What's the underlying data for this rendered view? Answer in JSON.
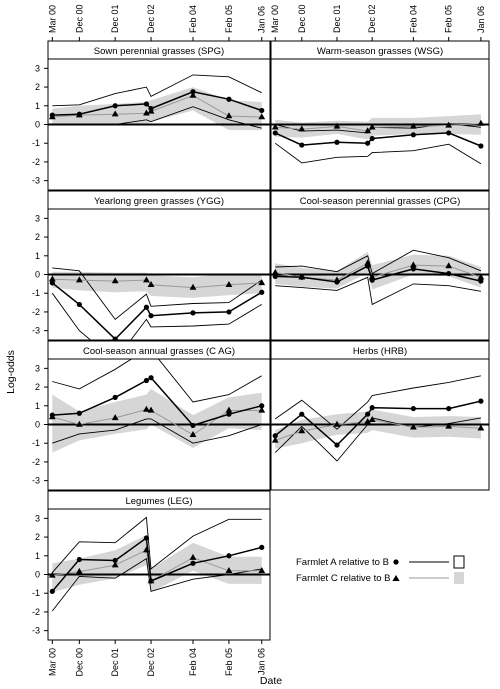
{
  "figure": {
    "ylabel": "Log-odds",
    "xlabel": "Date",
    "x_tick_labels": [
      "Mar 00",
      "Dec 00",
      "Dec 01",
      "Dec 02",
      "Feb 04",
      "Feb 05",
      "Jan 06"
    ],
    "y_tick_labels": [
      "-3",
      "-2",
      "-1",
      "0",
      "1",
      "2",
      "3"
    ]
  },
  "legend": {
    "farmlet_a": "Farmlet A relative to B",
    "farmlet_c": "Farmlet C relative to B"
  },
  "colors": {
    "series_a": "#000000",
    "series_c": "#9a9a9a",
    "band_c": "#d6d6d6"
  },
  "chart_data": {
    "type": "line",
    "ylim": [
      -3.5,
      3.5
    ],
    "xlim": [
      "2000-01-17",
      "2006-03-26"
    ],
    "grid": false,
    "reference_line": 0,
    "legend_position": "bottom-right",
    "series_names": [
      "Farmlet A relative to B",
      "Farmlet C relative to B"
    ],
    "x": [
      "2000-03-01",
      "2000-12-01",
      "2001-12-01",
      "2002-10-15",
      "2002-12-01",
      "2004-02-01",
      "2005-02-01",
      "2006-01-01"
    ],
    "panels": [
      {
        "title": "Sown perennial grasses (SPG)",
        "a": [
          0.5,
          0.55,
          1.0,
          1.1,
          0.85,
          1.75,
          1.35,
          0.75
        ],
        "a_lo": [
          0.0,
          0.0,
          0.0,
          0.25,
          0.15,
          0.95,
          0.25,
          -0.2
        ],
        "a_hi": [
          1.0,
          1.05,
          1.65,
          2.0,
          1.5,
          2.65,
          2.55,
          1.7
        ],
        "c": [
          0.4,
          0.5,
          0.55,
          0.6,
          0.7,
          1.55,
          0.45,
          0.4
        ],
        "c_lo": [
          0.0,
          0.0,
          0.05,
          0.0,
          0.15,
          0.75,
          -0.3,
          -0.3
        ],
        "c_hi": [
          0.85,
          1.0,
          1.1,
          1.2,
          1.3,
          2.0,
          1.3,
          1.2
        ]
      },
      {
        "title": "Warm-season grasses (WSG)",
        "a": [
          -0.45,
          -1.1,
          -0.95,
          -1.0,
          -0.75,
          -0.55,
          -0.45,
          -1.15
        ],
        "a_lo": [
          -1.0,
          -2.05,
          -1.75,
          -1.7,
          -1.5,
          -1.4,
          -1.05,
          -2.1
        ],
        "a_hi": [
          0.0,
          -0.35,
          -0.3,
          -0.45,
          -0.15,
          -0.2,
          0.05,
          -0.15
        ],
        "c": [
          -0.15,
          -0.25,
          -0.1,
          -0.35,
          -0.15,
          -0.1,
          -0.05,
          0.05
        ],
        "c_lo": [
          -0.65,
          -0.7,
          -0.5,
          -0.8,
          -0.6,
          -0.5,
          -0.5,
          -0.55
        ],
        "c_hi": [
          0.25,
          0.1,
          0.2,
          0.15,
          0.35,
          0.35,
          0.45,
          0.55
        ]
      },
      {
        "title": "Yearlong green grasses (YGG)",
        "a": [
          -0.45,
          -1.6,
          -3.45,
          -1.75,
          -2.2,
          -2.05,
          -2.0,
          -0.95
        ],
        "a_lo": [
          -1.0,
          -3.0,
          -4.6,
          -2.4,
          -2.8,
          -2.75,
          -2.65,
          -1.6
        ],
        "a_hi": [
          0.35,
          0.2,
          -2.4,
          -1.05,
          -1.7,
          -1.55,
          -1.5,
          -0.3
        ],
        "c": [
          -0.25,
          -0.3,
          -0.35,
          -0.3,
          -0.55,
          -0.7,
          -0.55,
          -0.45
        ],
        "c_lo": [
          -0.7,
          -0.85,
          -0.95,
          -0.9,
          -1.15,
          -1.25,
          -1.1,
          -1.0
        ],
        "c_hi": [
          0.15,
          0.15,
          0.1,
          0.1,
          -0.05,
          -0.15,
          0.05,
          0.05
        ]
      },
      {
        "title": "Cool-season perennial grasses (CPG)",
        "a": [
          -0.1,
          -0.15,
          -0.4,
          0.45,
          -0.3,
          0.3,
          0.05,
          -0.35
        ],
        "a_lo": [
          -0.6,
          -0.7,
          -0.85,
          -0.15,
          -1.6,
          -0.5,
          -0.6,
          -0.9
        ],
        "a_hi": [
          0.4,
          0.45,
          0.15,
          1.0,
          0.05,
          1.3,
          0.9,
          0.2
        ],
        "c": [
          0.1,
          -0.15,
          -0.3,
          0.6,
          -0.15,
          0.5,
          0.45,
          -0.15
        ],
        "c_lo": [
          -0.5,
          -0.65,
          -0.75,
          0.1,
          -0.8,
          0.0,
          -0.1,
          -0.7
        ],
        "c_hi": [
          0.6,
          0.35,
          0.2,
          1.2,
          0.5,
          1.05,
          1.0,
          0.4
        ]
      },
      {
        "title": "Cool-season annual grasses (C AG)",
        "a": [
          0.5,
          0.6,
          1.45,
          2.35,
          2.5,
          -0.05,
          0.55,
          1.0
        ],
        "a_lo": [
          -1.0,
          -0.5,
          -0.3,
          0.3,
          0.3,
          -1.0,
          -0.6,
          0.0
        ],
        "a_hi": [
          2.3,
          1.9,
          2.95,
          4.0,
          4.0,
          1.2,
          1.6,
          2.6
        ],
        "c": [
          0.4,
          0.0,
          0.35,
          0.8,
          0.75,
          -0.55,
          0.75,
          0.75
        ],
        "c_lo": [
          -1.5,
          -0.85,
          -0.5,
          -0.25,
          0.0,
          -1.25,
          -0.2,
          -0.3
        ],
        "c_hi": [
          1.6,
          0.7,
          1.2,
          1.6,
          1.9,
          0.5,
          1.45,
          1.7
        ]
      },
      {
        "title": "Herbs (HRB)",
        "a": [
          -0.6,
          0.55,
          -1.1,
          0.55,
          0.9,
          0.85,
          0.85,
          1.25
        ],
        "a_lo": [
          -1.5,
          -0.1,
          -1.95,
          0.0,
          0.35,
          -0.15,
          0.05,
          0.35
        ],
        "a_hi": [
          0.3,
          1.3,
          -0.25,
          1.2,
          1.55,
          1.95,
          2.25,
          2.6
        ],
        "c": [
          -0.85,
          -0.35,
          0.0,
          0.15,
          0.25,
          -0.15,
          -0.1,
          -0.2
        ],
        "c_lo": [
          -1.3,
          -1.0,
          -0.55,
          -0.45,
          -0.3,
          -0.7,
          -0.65,
          -0.75
        ],
        "c_hi": [
          -0.3,
          0.25,
          0.55,
          0.7,
          0.8,
          0.4,
          0.45,
          0.4
        ]
      },
      {
        "title": "Legumes (LEG)",
        "a": [
          -0.9,
          0.8,
          0.75,
          1.95,
          -0.35,
          0.6,
          1.0,
          1.45
        ],
        "a_lo": [
          -1.95,
          -0.1,
          -0.2,
          0.85,
          -0.9,
          -0.25,
          0.0,
          0.3
        ],
        "a_hi": [
          0.1,
          1.75,
          1.7,
          3.05,
          0.3,
          2.05,
          2.95,
          2.95
        ],
        "c": [
          -0.05,
          0.15,
          0.5,
          1.3,
          -0.35,
          0.9,
          0.2,
          0.2
        ],
        "c_lo": [
          -0.95,
          -0.55,
          -0.2,
          0.5,
          -0.95,
          0.2,
          -0.5,
          -0.5
        ],
        "c_hi": [
          0.6,
          0.85,
          1.3,
          2.1,
          0.3,
          1.7,
          0.95,
          0.95
        ]
      }
    ]
  }
}
